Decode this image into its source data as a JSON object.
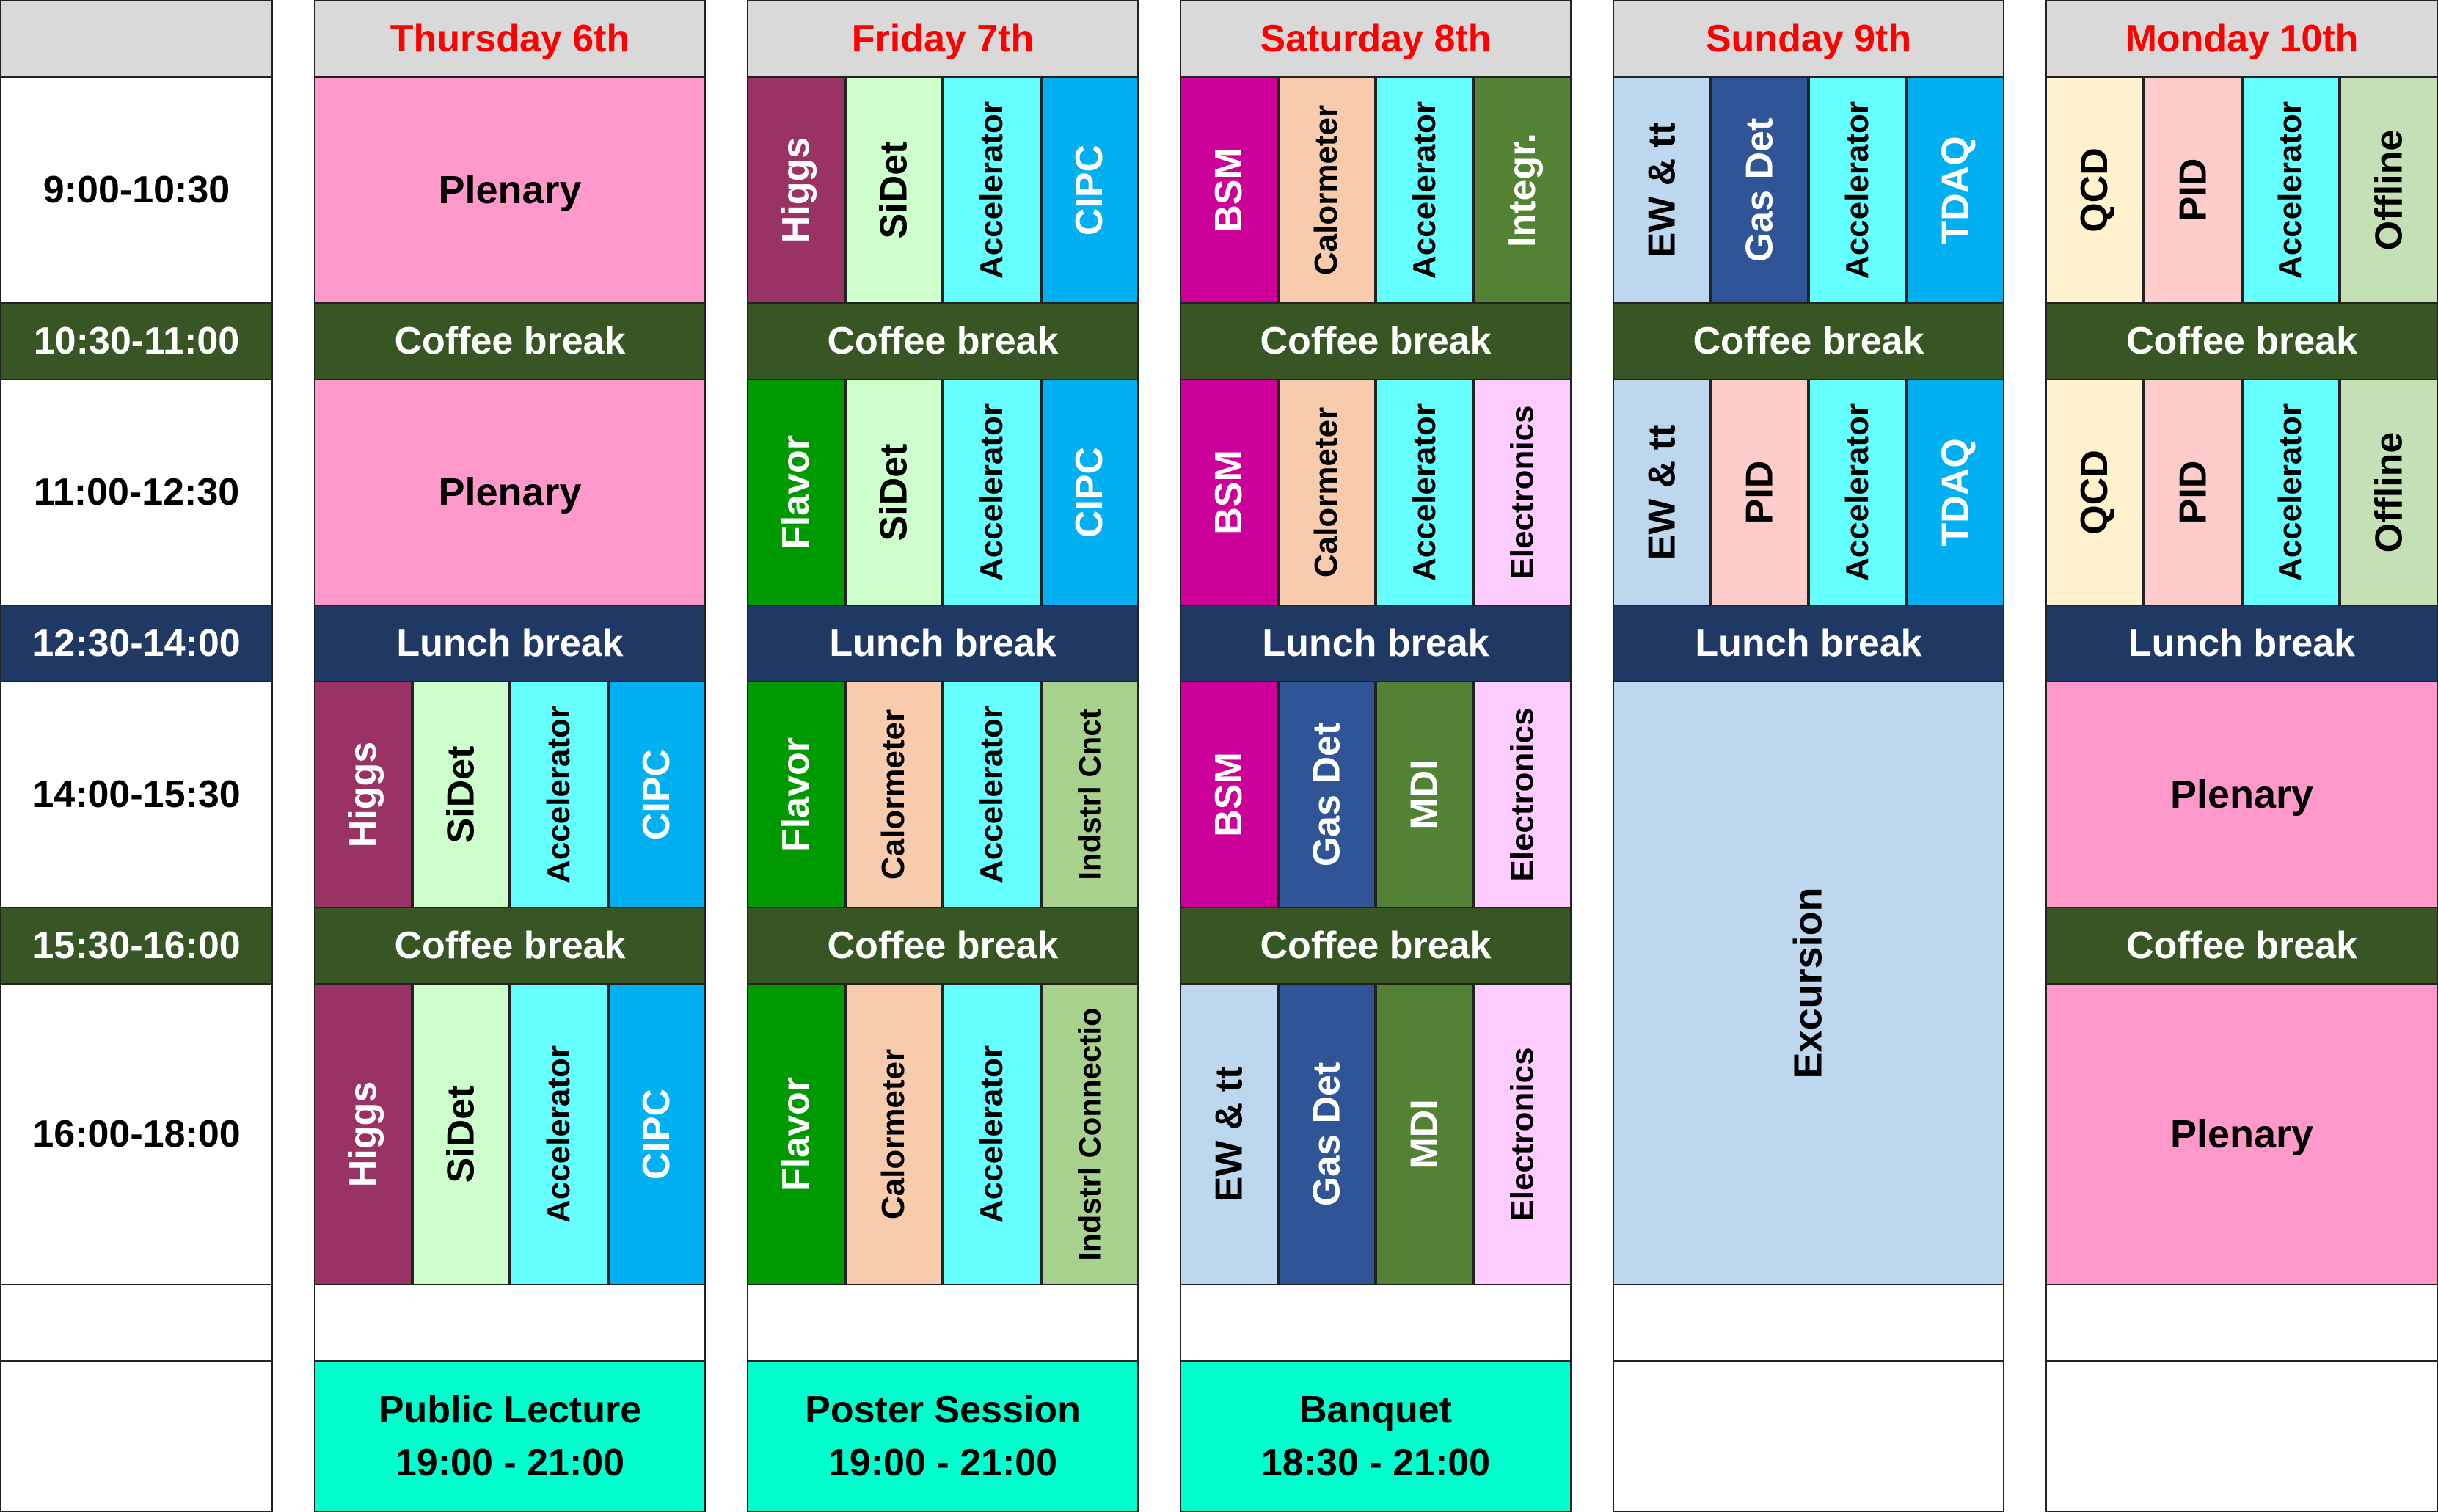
{
  "days": [
    "Thursday 6th",
    "Friday 7th",
    "Saturday 8th",
    "Sunday 9th",
    "Monday 10th"
  ],
  "times": [
    "9:00-10:30",
    "10:30-11:00",
    "11:00-12:30",
    "12:30-14:00",
    "14:00-15:30",
    "15:30-16:00",
    "16:00-18:00"
  ],
  "break_labels": {
    "coffee": "Coffee break",
    "lunch": "Lunch break"
  },
  "colors": {
    "header_text": "#ff0000",
    "header_bg": "#d9d9d9",
    "coffee_bg": "#375623",
    "lunch_bg": "#1f3864",
    "plenary": "#ff99cc",
    "higgs": "#993366",
    "sidet": "#ccffcc",
    "accelerator": "#66ffff",
    "cipc": "#00b0f0",
    "bsm": "#cc0099",
    "calormeter": "#f8cbad",
    "integr": "#548235",
    "ew": "#bdd7ee",
    "gasdet": "#2f5597",
    "tdaq": "#00b0f0",
    "qcd": "#fff2cc",
    "pid": "#ffcccc",
    "offline": "#c5e0b4",
    "flavor": "#009900",
    "electronics": "#ffccff",
    "indstrl": "#a9d18e",
    "mdi": "#548235",
    "excursion": "#bdd7ee",
    "evening": "#00ffcc"
  },
  "schedule": {
    "thursday": {
      "s1": "Plenary",
      "s2": "Plenary",
      "s3": [
        "Higgs",
        "SiDet",
        "Accelerator",
        "CIPC"
      ],
      "s4": [
        "Higgs",
        "SiDet",
        "Accelerator",
        "CIPC"
      ],
      "evening": {
        "title": "Public Lecture",
        "time": "19:00 - 21:00"
      }
    },
    "friday": {
      "s1": [
        "Higgs",
        "SiDet",
        "Accelerator",
        "CIPC"
      ],
      "s2": [
        "Flavor",
        "SiDet",
        "Accelerator",
        "CIPC"
      ],
      "s3": [
        "Flavor",
        "Calormeter",
        "Accelerator",
        "Indstrl Cnct"
      ],
      "s4": [
        "Flavor",
        "Calormeter",
        "Accelerator",
        "Indstrl Connectio"
      ],
      "evening": {
        "title": "Poster Session",
        "time": "19:00 - 21:00"
      }
    },
    "saturday": {
      "s1": [
        "BSM",
        "Calormeter",
        "Accelerator",
        "Integr."
      ],
      "s2": [
        "BSM",
        "Calormeter",
        "Accelerator",
        "Electronics"
      ],
      "s3": [
        "BSM",
        "Gas Det",
        "MDI",
        "Electronics"
      ],
      "s4": [
        "EW & tt",
        "Gas Det",
        "MDI",
        "Electronics"
      ],
      "evening": {
        "title": "Banquet",
        "time": "18:30 - 21:00"
      }
    },
    "sunday": {
      "s1": [
        "EW & tt",
        "Gas Det",
        "Accelerator",
        "TDAQ"
      ],
      "s2": [
        "EW & tt",
        "PID",
        "Accelerator",
        "TDAQ"
      ],
      "afternoon": "Excursion"
    },
    "monday": {
      "s1": [
        "QCD",
        "PID",
        "Accelerator",
        "Offline"
      ],
      "s2": [
        "QCD",
        "PID",
        "Accelerator",
        "Offline"
      ],
      "s3": "Plenary",
      "s4": "Plenary"
    }
  }
}
